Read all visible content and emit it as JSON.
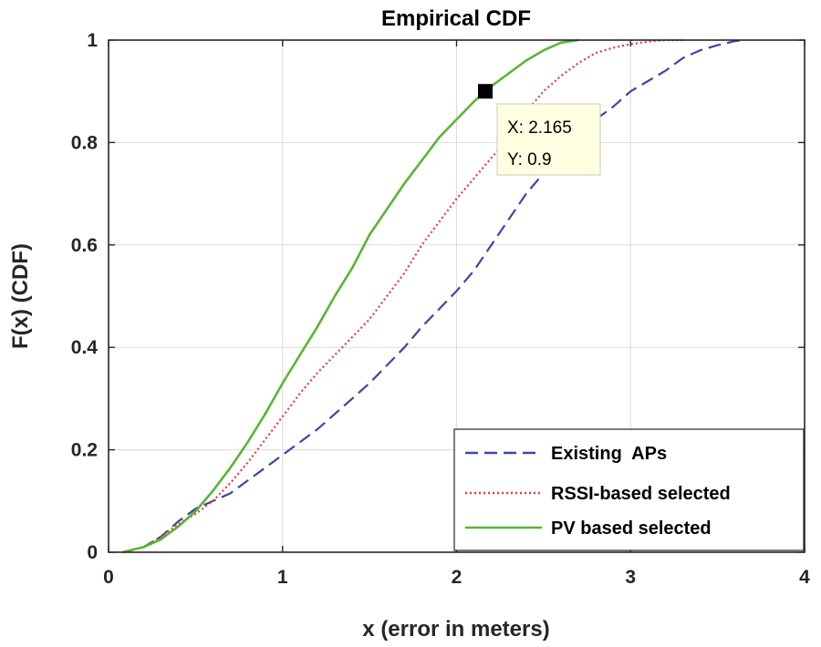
{
  "chart_data": {
    "type": "line",
    "title": "Empirical CDF",
    "xlabel": "x (error in meters)",
    "ylabel": "F(x) (CDF)",
    "xlim": [
      0,
      4
    ],
    "ylim": [
      0,
      1
    ],
    "x_ticks": [
      0,
      1,
      2,
      3,
      4
    ],
    "x_tick_labels": [
      "0",
      "1",
      "2",
      "3",
      "4"
    ],
    "y_ticks": [
      0,
      0.2,
      0.4,
      0.6,
      0.8,
      1
    ],
    "y_tick_labels": [
      "0",
      "0.2",
      "0.4",
      "0.6",
      "0.8",
      "1"
    ],
    "grid": true,
    "legend_position": "bottom-right",
    "series": [
      {
        "name": "Existing  APs",
        "color": "#3a46a8",
        "style": "dashed",
        "x": [
          0.08,
          0.2,
          0.3,
          0.4,
          0.5,
          0.6,
          0.7,
          0.8,
          0.9,
          1.0,
          1.1,
          1.2,
          1.3,
          1.4,
          1.5,
          1.6,
          1.7,
          1.8,
          1.9,
          2.0,
          2.1,
          2.2,
          2.3,
          2.4,
          2.5,
          2.6,
          2.7,
          2.8,
          2.9,
          3.0,
          3.1,
          3.2,
          3.3,
          3.4,
          3.5,
          3.6,
          3.65
        ],
        "y": [
          0.0,
          0.01,
          0.03,
          0.06,
          0.085,
          0.1,
          0.115,
          0.14,
          0.165,
          0.19,
          0.215,
          0.24,
          0.27,
          0.3,
          0.33,
          0.365,
          0.4,
          0.44,
          0.475,
          0.51,
          0.55,
          0.6,
          0.65,
          0.7,
          0.74,
          0.775,
          0.81,
          0.845,
          0.87,
          0.9,
          0.92,
          0.94,
          0.965,
          0.98,
          0.99,
          0.998,
          1.0
        ]
      },
      {
        "name": "RSSI-based selected",
        "color": "#e8383d",
        "style": "dotted",
        "x": [
          0.08,
          0.2,
          0.3,
          0.4,
          0.5,
          0.6,
          0.7,
          0.8,
          0.9,
          1.0,
          1.1,
          1.2,
          1.3,
          1.4,
          1.5,
          1.6,
          1.7,
          1.8,
          1.9,
          2.0,
          2.1,
          2.2,
          2.3,
          2.4,
          2.5,
          2.6,
          2.7,
          2.8,
          2.9,
          3.0,
          3.1,
          3.2,
          3.3
        ],
        "y": [
          0.0,
          0.01,
          0.03,
          0.055,
          0.075,
          0.1,
          0.135,
          0.175,
          0.22,
          0.265,
          0.31,
          0.35,
          0.385,
          0.42,
          0.455,
          0.5,
          0.545,
          0.6,
          0.645,
          0.69,
          0.73,
          0.77,
          0.81,
          0.86,
          0.9,
          0.93,
          0.955,
          0.975,
          0.985,
          0.992,
          0.997,
          1.0,
          1.0
        ]
      },
      {
        "name": "PV based selected",
        "color": "#5ab536",
        "style": "solid",
        "x": [
          0.08,
          0.2,
          0.3,
          0.4,
          0.5,
          0.6,
          0.7,
          0.8,
          0.9,
          1.0,
          1.1,
          1.2,
          1.3,
          1.4,
          1.5,
          1.6,
          1.7,
          1.8,
          1.9,
          2.0,
          2.1,
          2.165,
          2.2,
          2.3,
          2.4,
          2.5,
          2.6,
          2.7
        ],
        "y": [
          0.0,
          0.01,
          0.025,
          0.05,
          0.08,
          0.12,
          0.165,
          0.215,
          0.27,
          0.33,
          0.385,
          0.44,
          0.5,
          0.555,
          0.62,
          0.67,
          0.72,
          0.765,
          0.81,
          0.845,
          0.88,
          0.9,
          0.91,
          0.935,
          0.96,
          0.98,
          0.995,
          1.0
        ]
      }
    ],
    "annotations": [
      {
        "type": "datatip",
        "x": 2.165,
        "y": 0.9,
        "line1": "X: 2.165",
        "line2": "Y: 0.9"
      }
    ]
  }
}
